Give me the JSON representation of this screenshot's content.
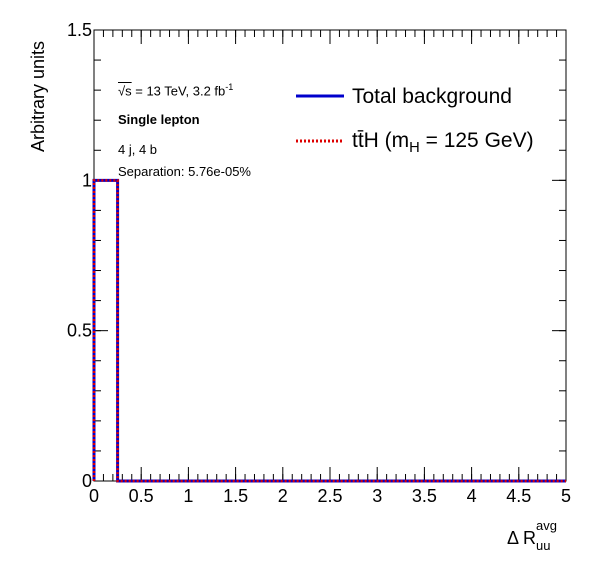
{
  "chart_data": {
    "type": "histogram",
    "title": "",
    "xlabel": {
      "base": "Δ R",
      "sup": "avg",
      "sub": "uu"
    },
    "ylabel": "Arbitrary units",
    "xlim": [
      0,
      5
    ],
    "ylim": [
      0,
      1.5
    ],
    "x_ticks": [
      "0",
      "0.5",
      "1",
      "1.5",
      "2",
      "2.5",
      "3",
      "3.5",
      "4",
      "4.5",
      "5"
    ],
    "y_ticks": [
      "0",
      "0.5",
      "1",
      "1.5"
    ],
    "grid": false,
    "legend_position": "top-right",
    "series": [
      {
        "name": "Total background",
        "color": "#0000cc",
        "style": "solid",
        "bins": [
          {
            "x0": 0,
            "x1": 0.25,
            "y": 1.0
          },
          {
            "x0": 0.25,
            "x1": 5,
            "y": 0.0
          }
        ]
      },
      {
        "name": "tt̄H (m_H = 125 GeV)",
        "color": "#dd0000",
        "style": "dotted",
        "bins": [
          {
            "x0": 0,
            "x1": 0.25,
            "y": 1.0
          },
          {
            "x0": 0.25,
            "x1": 5,
            "y": 0.0
          }
        ]
      }
    ],
    "legend": [
      {
        "label": "Total background"
      },
      {
        "label_parts": {
          "pre": "tt̄H (m",
          "sub": "H",
          "post": " = 125 GeV)"
        }
      }
    ],
    "annotations": {
      "energy": {
        "sqrt": "√s",
        "text": " = 13 TeV, 3.2 fb",
        "sup": "-1"
      },
      "channel": "Single lepton",
      "region": "4 j, 4 b",
      "separation": "Separation: 5.76e-05%"
    }
  }
}
